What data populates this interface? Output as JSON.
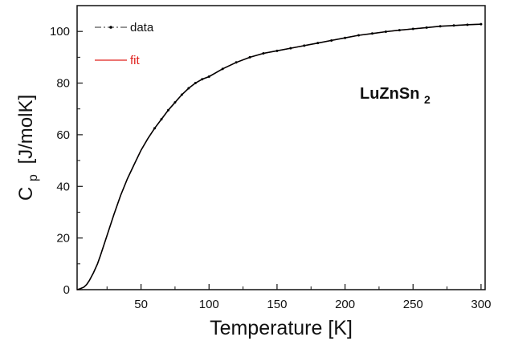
{
  "chart_data": {
    "type": "line",
    "xlabel": "Temperature [K]",
    "ylabel_main": "C",
    "ylabel_sub": "p",
    "ylabel_units": "[J/molK]",
    "annotation_main": "LuZnSn",
    "annotation_sub": "2",
    "xlim": [
      3,
      303
    ],
    "ylim": [
      0,
      110
    ],
    "xticks": [
      50,
      100,
      150,
      200,
      250,
      300
    ],
    "yticks": [
      0,
      20,
      40,
      60,
      80,
      100
    ],
    "legend_position": "top-left",
    "grid": false,
    "series": [
      {
        "name": "data",
        "style": "dash-dot with points",
        "color": "#000000",
        "x": [
          2,
          5,
          8,
          10,
          12,
          15,
          18,
          20,
          25,
          30,
          35,
          40,
          45,
          50,
          55,
          60,
          65,
          70,
          75,
          80,
          85,
          90,
          95,
          100,
          110,
          120,
          130,
          140,
          150,
          160,
          170,
          180,
          190,
          200,
          210,
          220,
          230,
          240,
          250,
          260,
          270,
          280,
          290,
          300
        ],
        "y": [
          0.0,
          0.3,
          1.0,
          2.0,
          3.5,
          6.5,
          10.0,
          13.0,
          21.0,
          29.0,
          36.5,
          43.0,
          48.5,
          54.0,
          58.5,
          62.5,
          66.0,
          69.5,
          72.5,
          75.5,
          78.0,
          80.0,
          81.5,
          82.5,
          85.5,
          88.0,
          90.0,
          91.5,
          92.5,
          93.5,
          94.5,
          95.5,
          96.5,
          97.5,
          98.5,
          99.2,
          99.9,
          100.5,
          101.0,
          101.5,
          102.0,
          102.3,
          102.6,
          102.8
        ]
      },
      {
        "name": "fit",
        "style": "solid",
        "color": "#e0201c",
        "x": [
          2,
          5,
          8,
          10,
          12,
          15,
          18,
          20,
          25,
          30,
          35,
          40,
          45,
          50,
          55,
          60,
          65,
          70,
          75,
          80,
          85,
          90,
          95,
          100,
          110,
          120,
          130,
          140,
          150,
          160,
          170,
          180,
          190,
          200,
          210,
          220,
          230,
          240,
          250,
          260,
          270,
          280,
          290,
          300
        ],
        "y": [
          0.0,
          0.3,
          1.0,
          2.0,
          3.5,
          6.5,
          10.0,
          13.0,
          21.0,
          29.0,
          36.5,
          43.0,
          48.5,
          54.0,
          58.5,
          62.5,
          66.0,
          69.5,
          72.5,
          75.5,
          78.0,
          80.0,
          81.5,
          82.5,
          85.5,
          88.0,
          90.0,
          91.5,
          92.5,
          93.5,
          94.5,
          95.5,
          96.5,
          97.5,
          98.5,
          99.2,
          99.9,
          100.5,
          101.0,
          101.5,
          102.0,
          102.3,
          102.6,
          102.8
        ]
      }
    ]
  }
}
